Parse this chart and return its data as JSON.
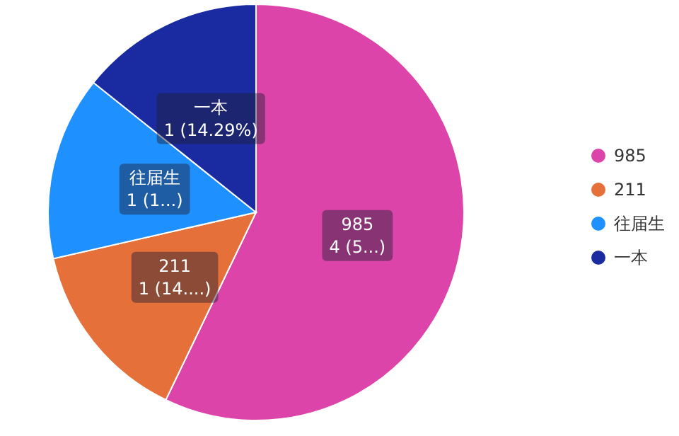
{
  "chart_data": {
    "type": "pie",
    "categories": [
      "985",
      "211",
      "往届生",
      "一本"
    ],
    "values": [
      4,
      1,
      1,
      1
    ],
    "colors": [
      "#dd44aa",
      "#e5703a",
      "#1e90ff",
      "#1a2aa0"
    ],
    "value_labels": [
      "4 (5...)",
      "1 (14....)",
      "1 (1...)",
      "1 (14.29%)"
    ],
    "legend": "right"
  }
}
